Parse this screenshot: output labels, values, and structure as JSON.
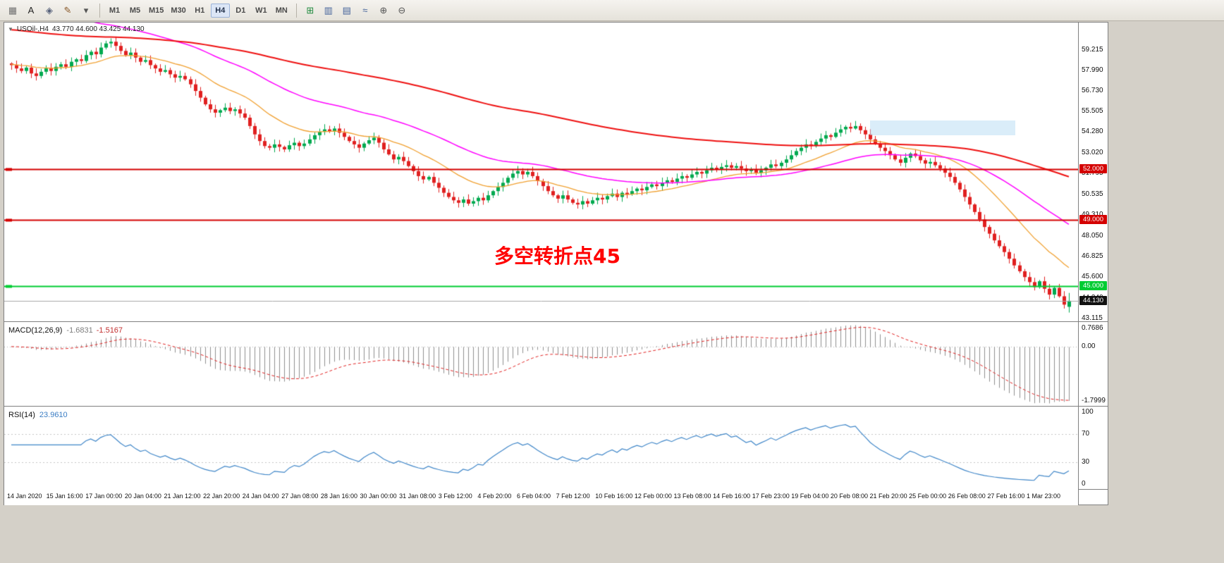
{
  "toolbar": {
    "left_icons": [
      {
        "name": "grid-icon",
        "glyph": "▦",
        "color": "#707070"
      },
      {
        "name": "text-label-icon",
        "glyph": "A",
        "color": "#222222"
      },
      {
        "name": "textbox-icon",
        "glyph": "◈",
        "color": "#55607a"
      },
      {
        "name": "draw-tools-icon",
        "glyph": "✎",
        "color": "#8a5a2a"
      },
      {
        "name": "draw-tools-caret-icon",
        "glyph": "▾",
        "color": "#555555"
      }
    ],
    "timeframes": [
      "M1",
      "M5",
      "M15",
      "M30",
      "H1",
      "H4",
      "D1",
      "W1",
      "MN"
    ],
    "active_timeframe": "H4",
    "right_icons": [
      {
        "name": "new-order-icon",
        "glyph": "⊞",
        "color": "#1f8a3d"
      },
      {
        "name": "chart-bars-icon",
        "glyph": "▥",
        "color": "#44639a"
      },
      {
        "name": "chart-candles-icon",
        "glyph": "▤",
        "color": "#44639a"
      },
      {
        "name": "chart-line-icon",
        "glyph": "≈",
        "color": "#44639a"
      },
      {
        "name": "zoom-in-icon",
        "glyph": "⊕",
        "color": "#555555"
      },
      {
        "name": "zoom-out-icon",
        "glyph": "⊖",
        "color": "#555555"
      }
    ]
  },
  "chart_header": {
    "arrow": "▼",
    "symbol": "USOil-,H4",
    "ohlc": "43.770 44.600 43.425 44.130"
  },
  "annotation": {
    "text": "多空转折点45",
    "color": "#ff0000"
  },
  "main_chart": {
    "price_max": 60.8,
    "price_min": 42.9
  },
  "price_axis": [
    {
      "text": "59.215",
      "value": 59.215
    },
    {
      "text": "57.990",
      "value": 57.99
    },
    {
      "text": "56.730",
      "value": 56.73
    },
    {
      "text": "55.505",
      "value": 55.505
    },
    {
      "text": "54.280",
      "value": 54.28
    },
    {
      "text": "53.020",
      "value": 53.02
    },
    {
      "text": "51.795",
      "value": 51.795
    },
    {
      "text": "50.535",
      "value": 50.535
    },
    {
      "text": "49.310",
      "value": 49.31
    },
    {
      "text": "48.050",
      "value": 48.05
    },
    {
      "text": "46.825",
      "value": 46.825
    },
    {
      "text": "45.600",
      "value": 45.6
    },
    {
      "text": "44.340",
      "value": 44.34
    },
    {
      "text": "43.115",
      "value": 43.115
    }
  ],
  "time_axis": [
    "14 Jan 2020",
    "15 Jan 16:00",
    "17 Jan 00:00",
    "20 Jan 04:00",
    "21 Jan 12:00",
    "22 Jan 20:00",
    "24 Jan 04:00",
    "27 Jan 08:00",
    "28 Jan 16:00",
    "30 Jan 00:00",
    "31 Jan 08:00",
    "3 Feb 12:00",
    "4 Feb 20:00",
    "6 Feb 04:00",
    "7 Feb 12:00",
    "10 Feb 16:00",
    "12 Feb 00:00",
    "13 Feb 08:00",
    "14 Feb 16:00",
    "17 Feb 23:00",
    "19 Feb 04:00",
    "20 Feb 08:00",
    "21 Feb 20:00",
    "25 Feb 00:00",
    "26 Feb 08:00",
    "27 Feb 16:00",
    "1 Mar 23:00"
  ],
  "macd": {
    "name": "MACD(12,26,9)",
    "value1": "-1.6831",
    "value2": "-1.5167",
    "scale": [
      "0.7686",
      "0.00",
      "-1.7999"
    ],
    "histogram_color": "#8f8f8f",
    "signal_color": "#e02020"
  },
  "rsi": {
    "name": "RSI(14)",
    "value": "23.9610",
    "line_color": "#3f86c8",
    "scale": [
      {
        "text": "100",
        "value": 100
      },
      {
        "text": "70",
        "value": 70
      },
      {
        "text": "30",
        "value": 30
      },
      {
        "text": "0",
        "value": 0
      }
    ]
  },
  "chart_data": {
    "type": "candlestick",
    "symbol": "USOil-",
    "timeframe": "H4",
    "title": "USOil-,H4",
    "last_ohlc": {
      "o": 43.77,
      "h": 44.6,
      "l": 43.425,
      "c": 44.13
    },
    "first_open": 58.35,
    "colors": {
      "up": "#00a94f",
      "down": "#e02020"
    },
    "closes": [
      58.25,
      58.05,
      57.9,
      58.1,
      57.75,
      57.6,
      57.85,
      58.05,
      57.9,
      58.15,
      58.3,
      58.15,
      58.45,
      58.6,
      58.5,
      58.85,
      59.05,
      58.9,
      59.3,
      59.55,
      59.65,
      59.4,
      59.1,
      58.85,
      59.0,
      58.7,
      58.45,
      58.55,
      58.25,
      58.05,
      57.85,
      57.95,
      57.7,
      57.5,
      57.6,
      57.4,
      57.1,
      56.7,
      56.3,
      55.9,
      55.6,
      55.4,
      55.55,
      55.7,
      55.5,
      55.6,
      55.35,
      55.1,
      54.6,
      54.1,
      53.7,
      53.4,
      53.3,
      53.5,
      53.35,
      53.2,
      53.45,
      53.6,
      53.4,
      53.55,
      53.8,
      54.05,
      54.25,
      54.4,
      54.3,
      54.45,
      54.2,
      53.95,
      53.7,
      53.5,
      53.3,
      53.55,
      53.75,
      53.9,
      53.6,
      53.2,
      52.9,
      52.6,
      52.75,
      52.5,
      52.2,
      51.9,
      51.6,
      51.4,
      51.55,
      51.2,
      50.9,
      50.6,
      50.35,
      50.15,
      50.0,
      50.2,
      49.95,
      50.1,
      50.3,
      50.15,
      50.45,
      50.7,
      50.95,
      51.2,
      51.5,
      51.75,
      51.9,
      51.7,
      51.85,
      51.6,
      51.3,
      51.0,
      50.7,
      50.45,
      50.25,
      50.45,
      50.2,
      50.0,
      49.9,
      50.1,
      49.95,
      50.15,
      50.3,
      50.2,
      50.4,
      50.55,
      50.35,
      50.6,
      50.5,
      50.7,
      50.85,
      50.75,
      50.95,
      51.1,
      51.0,
      51.2,
      51.35,
      51.25,
      51.45,
      51.6,
      51.5,
      51.7,
      51.85,
      51.75,
      51.95,
      52.1,
      52.0,
      52.15,
      52.25,
      52.1,
      52.2,
      52.05,
      51.9,
      52.0,
      51.8,
      51.95,
      52.1,
      52.3,
      52.2,
      52.4,
      52.6,
      52.85,
      53.1,
      53.3,
      53.5,
      53.4,
      53.65,
      53.85,
      54.05,
      53.95,
      54.2,
      54.4,
      54.55,
      54.45,
      54.6,
      54.35,
      54.1,
      53.8,
      53.55,
      53.3,
      53.1,
      52.85,
      52.6,
      52.4,
      52.7,
      52.95,
      52.8,
      52.55,
      52.35,
      52.45,
      52.25,
      52.05,
      51.8,
      51.55,
      51.2,
      50.8,
      50.35,
      49.9,
      49.45,
      49.0,
      48.55,
      48.15,
      47.75,
      47.4,
      47.05,
      46.65,
      46.25,
      45.9,
      45.55,
      45.25,
      44.95,
      45.3,
      44.85,
      44.5,
      44.9,
      44.4,
      43.9,
      44.13
    ],
    "overlays": [
      {
        "name": "ma-fast-orange",
        "color": "#f0a030",
        "alpha": 0.1,
        "seed": 58.3,
        "width": 1.3
      },
      {
        "name": "ma-mid-magenta",
        "color": "#ff00ff",
        "alpha": 0.04,
        "seed": 63.5,
        "width": 1.5
      },
      {
        "name": "ma-slow-red",
        "color": "#ee1111",
        "alpha": 0.013,
        "seed": 60.4,
        "width": 2
      }
    ],
    "hlines": [
      {
        "value": 52.0,
        "label": "52.000",
        "color": "#d40000",
        "width": 2
      },
      {
        "value": 49.0,
        "label": "49.000",
        "color": "#d40000",
        "width": 2
      },
      {
        "value": 45.0,
        "label": "45.000",
        "color": "#00cc33",
        "width": 2
      }
    ],
    "bid_line": {
      "value": 44.13,
      "label": "44.130",
      "color": "#a8a8a8",
      "badge_color": "#111111"
    },
    "indicators": {
      "macd": {
        "fast": 12,
        "slow": 26,
        "signal": 9
      },
      "rsi": {
        "period": 14,
        "levels": [
          70,
          30
        ]
      }
    }
  }
}
